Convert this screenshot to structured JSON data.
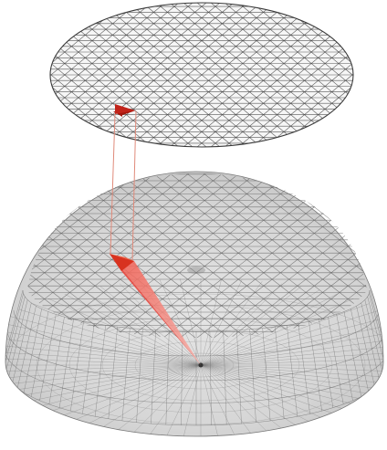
{
  "figure": {
    "panels": [
      "projection-disk",
      "hemisphere"
    ],
    "colors": {
      "background": "#ffffff",
      "disk_mesh": "#3a3a3a",
      "hemisphere_fill": "#d9d9d9",
      "hemisphere_mesh": "#555555",
      "highlight": "#e8453c",
      "highlight_dark": "#b81d12",
      "projection_lines": "#e08a7a"
    },
    "mesh": {
      "disk": "triangulated",
      "hemisphere": "geodesic"
    }
  }
}
